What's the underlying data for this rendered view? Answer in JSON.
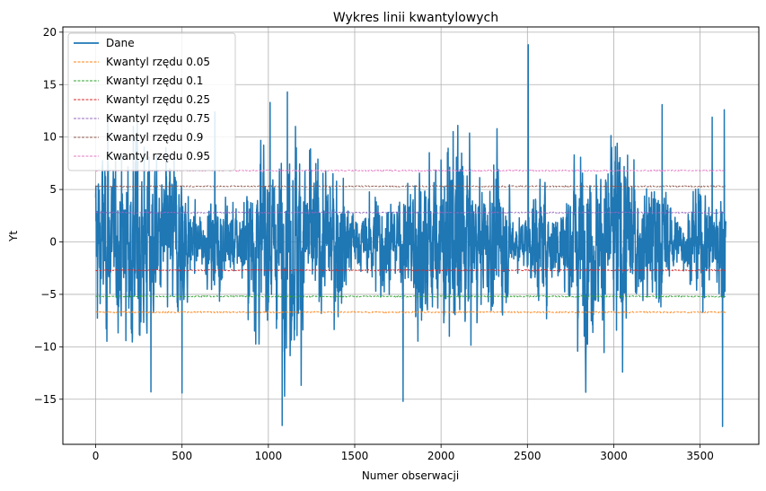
{
  "chart_data": {
    "type": "line",
    "title": "Wykres linii kwantylowych",
    "xlabel": "Numer obserwacji",
    "ylabel": "Yt",
    "xlim": [
      -190,
      3840
    ],
    "ylim": [
      -19.3,
      20.5
    ],
    "xticks": [
      0,
      500,
      1000,
      1500,
      2000,
      2500,
      3000,
      3500
    ],
    "yticks": [
      -15,
      -10,
      -5,
      0,
      5,
      10,
      15,
      20
    ],
    "grid": true,
    "legend_position": "top-left",
    "n_points": 3650,
    "data_series": {
      "name": "Dane",
      "color": "#1f77b4",
      "range": [
        -17.6,
        18.8
      ],
      "notable_points": [
        {
          "x": 70,
          "y": 11.8
        },
        {
          "x": 320,
          "y": -14.3
        },
        {
          "x": 500,
          "y": -14.4
        },
        {
          "x": 690,
          "y": 12.4
        },
        {
          "x": 1010,
          "y": 13.3
        },
        {
          "x": 1080,
          "y": -17.5
        },
        {
          "x": 1110,
          "y": 14.3
        },
        {
          "x": 1780,
          "y": -15.2
        },
        {
          "x": 2505,
          "y": 18.8
        },
        {
          "x": 3280,
          "y": 13.1
        },
        {
          "x": 3570,
          "y": 11.9
        },
        {
          "x": 3630,
          "y": -17.6
        },
        {
          "x": 3640,
          "y": 12.6
        }
      ]
    },
    "series": [
      {
        "name": "Kwantyl rzędu 0.05",
        "color": "#ff7f0e",
        "value": -6.7,
        "style": "dashed"
      },
      {
        "name": "Kwantyl rzędu 0.1",
        "color": "#2ca02c",
        "value": -5.2,
        "style": "dashed"
      },
      {
        "name": "Kwantyl rzędu 0.25",
        "color": "#d62728",
        "value": -2.7,
        "style": "dashed"
      },
      {
        "name": "Kwantyl rzędu 0.75",
        "color": "#9467bd",
        "value": 2.8,
        "style": "dashed"
      },
      {
        "name": "Kwantyl rzędu 0.9",
        "color": "#8c564b",
        "value": 5.3,
        "style": "dashed"
      },
      {
        "name": "Kwantyl rzędu 0.95",
        "color": "#e377c2",
        "value": 6.8,
        "style": "dashed"
      }
    ]
  }
}
